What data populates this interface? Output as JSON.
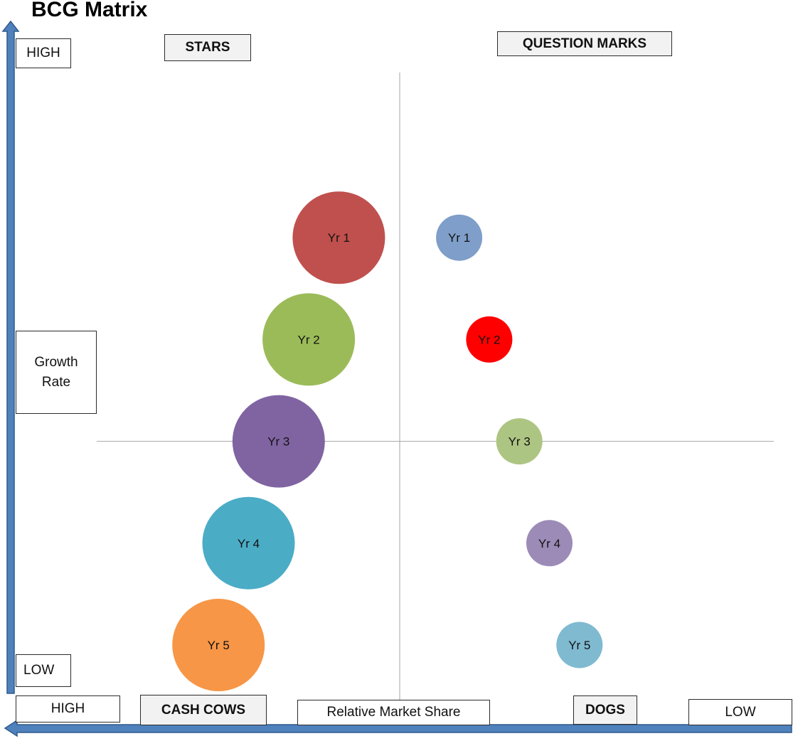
{
  "chart_data": {
    "type": "scatter",
    "title": "BCG Matrix",
    "ylabel": "Growth Rate",
    "xlabel": "Relative Market Share",
    "y_axis_labels": {
      "high": "HIGH",
      "low": "LOW"
    },
    "x_axis_labels": {
      "high": "HIGH",
      "low": "LOW"
    },
    "quadrants": {
      "stars": "STARS",
      "question_marks": "QUESTION MARKS",
      "cash_cows": "CASH COWS",
      "dogs": "DOGS"
    },
    "xlim": [
      0,
      10
    ],
    "ylim": [
      0,
      10
    ],
    "series": [
      {
        "points": [
          {
            "label": "Yr 1",
            "x": 4.0,
            "y": 8.0,
            "size": 2.0,
            "color": "#c0504d"
          },
          {
            "label": "Yr 2",
            "x": 3.5,
            "y": 6.0,
            "size": 2.0,
            "color": "#9bbb59"
          },
          {
            "label": "Yr 3",
            "x": 3.0,
            "y": 4.0,
            "size": 2.0,
            "color": "#8064a2"
          },
          {
            "label": "Yr 4",
            "x": 2.5,
            "y": 2.0,
            "size": 2.0,
            "color": "#4bacc6"
          },
          {
            "label": "Yr 5",
            "x": 2.0,
            "y": 0.0,
            "size": 2.0,
            "color": "#f79646"
          }
        ]
      },
      {
        "points": [
          {
            "label": "Yr 1",
            "x": 6.0,
            "y": 8.0,
            "size": 1.0,
            "color": "#7f9ec9"
          },
          {
            "label": "Yr 2",
            "x": 6.5,
            "y": 6.0,
            "size": 1.0,
            "color": "#ff0000"
          },
          {
            "label": "Yr 3",
            "x": 7.0,
            "y": 4.0,
            "size": 1.0,
            "color": "#adc582"
          },
          {
            "label": "Yr 4",
            "x": 7.5,
            "y": 2.0,
            "size": 1.0,
            "color": "#9c8bb7"
          },
          {
            "label": "Yr 5",
            "x": 8.0,
            "y": 0.0,
            "size": 1.0,
            "color": "#7fbad1"
          }
        ]
      }
    ],
    "divider": {
      "x": 5.0,
      "y": 4.0
    },
    "colors": {
      "axis_arrow": "#4f81bd",
      "axis_arrow_border": "#2f5a8a",
      "divider": "#a6a6a6"
    }
  }
}
